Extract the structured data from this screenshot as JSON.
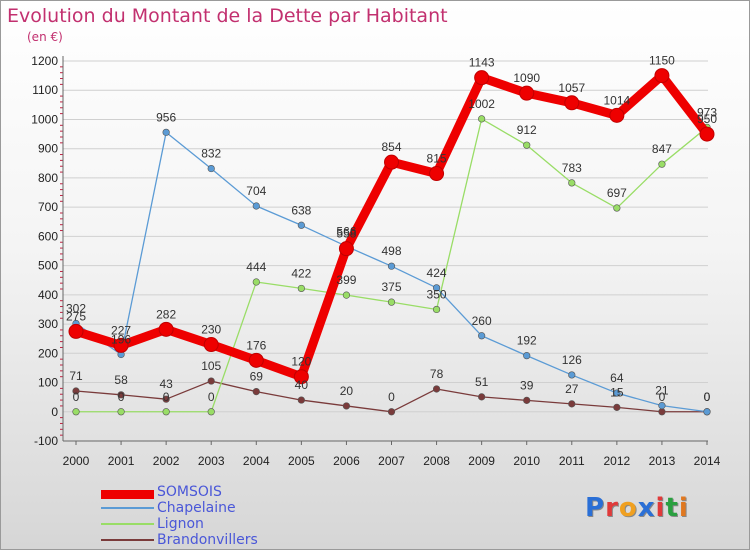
{
  "title": "Evolution du Montant de la Dette par Habitant",
  "unit_label": "(en €)",
  "logo": {
    "letters": [
      "P",
      "r",
      "o",
      "x",
      "i",
      "t",
      "i"
    ],
    "colors": [
      "#2a6fd6",
      "#e03a3a",
      "#f0a020",
      "#2a6fd6",
      "#e03a3a",
      "#2aa040",
      "#e07820"
    ]
  },
  "chart_data": {
    "type": "line",
    "x": [
      "2000",
      "2001",
      "2002",
      "2003",
      "2004",
      "2005",
      "2006",
      "2007",
      "2008",
      "2009",
      "2010",
      "2011",
      "2012",
      "2013",
      "2014"
    ],
    "ylim": [
      -100,
      1200
    ],
    "yticks": [
      "-100",
      "0",
      "100",
      "200",
      "300",
      "400",
      "500",
      "600",
      "700",
      "800",
      "900",
      "1000",
      "1100",
      "1200"
    ],
    "grid": "horizontal",
    "legend_position": "bottom-left",
    "series": [
      {
        "name": "SOMSOIS",
        "color": "#ee0000",
        "values": [
          275,
          227,
          282,
          230,
          176,
          120,
          558,
          854,
          815,
          1143,
          1090,
          1057,
          1014,
          1150,
          950
        ],
        "labels": [
          "275",
          "227",
          "282",
          "230",
          "176",
          "120",
          "558",
          "854",
          "815",
          "1143",
          "1090",
          "1057",
          "1014",
          "1150",
          "950"
        ]
      },
      {
        "name": "Chapelaine",
        "color": "#5b9bd5",
        "values": [
          302,
          196,
          956,
          832,
          704,
          638,
          566,
          498,
          424,
          260,
          192,
          126,
          64,
          21,
          0
        ],
        "labels": [
          "302",
          "196",
          "956",
          "832",
          "704",
          "638",
          "566",
          "498",
          "424",
          "260",
          "192",
          "126",
          "64",
          "21",
          "0"
        ]
      },
      {
        "name": "Lignon",
        "color": "#99dd66",
        "values": [
          0,
          0,
          0,
          0,
          444,
          422,
          399,
          375,
          350,
          1002,
          912,
          783,
          697,
          847,
          973
        ],
        "labels": [
          "0",
          "0",
          "0",
          "0",
          "444",
          "422",
          "399",
          "375",
          "350",
          "1002",
          "912",
          "783",
          "697",
          "847",
          "973"
        ]
      },
      {
        "name": "Brandonvillers",
        "color": "#7a3b3b",
        "values": [
          71,
          58,
          43,
          105,
          69,
          40,
          20,
          0,
          78,
          51,
          39,
          27,
          15,
          0,
          0
        ],
        "labels": [
          "71",
          "58",
          "43",
          "105",
          "69",
          "40",
          "20",
          "0",
          "78",
          "51",
          "39",
          "27",
          "15",
          "0",
          "0"
        ]
      }
    ]
  }
}
